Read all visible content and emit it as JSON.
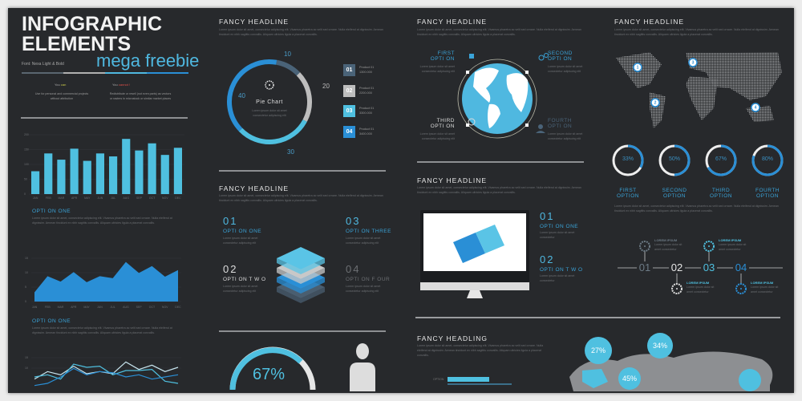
{
  "colors": {
    "background": "#27292c",
    "cyan": "#4fc0e0",
    "blue": "#2a8fd6",
    "slate": "#4a6378",
    "light_gray": "#bdbdbd",
    "text": "#e6e6e6"
  },
  "lorem_long": "Lorem ipsum dolor sit amet, consectetur adipiscing elit. Vivamus pharetra ac velit sed ornare. Nulla eleifend at dignissim. Aenean tincidunt ex nibh sagittis convallis. Aliquam ultricies ligula a placerat convallis.",
  "lorem_short": "Lorem ipsum dolor sit amet consectetur adipiscing elit",
  "intro": {
    "title_line1": "INFOGRAPHIC",
    "title_line2": "ELEMENTS",
    "subtitle": "mega freebie",
    "font_note": "Font: Nexa Light & Bold",
    "can_prefix": "You ",
    "can_word": "can",
    "can_text": "Use for personal and commercial projects without attribution",
    "cannot_prefix": "You ",
    "cannot_word": "cannot !",
    "cannot_text": "Redistribute or resell (not even parts) as vectors or rasters in microstock or similar market places"
  },
  "bar_chart": {
    "chart_data": {
      "type": "bar",
      "categories": [
        "JAN",
        "FEB",
        "MAR",
        "APR",
        "MAY",
        "JUN",
        "JUL",
        "AUG",
        "SEP",
        "OCT",
        "NOV",
        "DEC"
      ],
      "values": [
        77,
        137,
        116,
        153,
        112,
        137,
        127,
        186,
        147,
        171,
        132,
        156
      ],
      "yticks": [
        "0",
        "50",
        "100",
        "150",
        "200"
      ],
      "ylim": [
        0,
        200
      ],
      "grid": true,
      "color": "#4fc0e0"
    }
  },
  "option_one_a": {
    "label": "OPTI ON ONE"
  },
  "area_chart": {
    "chart_data": {
      "type": "area",
      "categories": [
        "JAN",
        "FEB",
        "MAR",
        "APR",
        "MAY",
        "JUN",
        "JUL",
        "AUG",
        "SEP",
        "OCT",
        "NOV",
        "DEC"
      ],
      "values": [
        3.2,
        8.8,
        6.9,
        10.2,
        6.7,
        8.8,
        8.1,
        13.7,
        9.9,
        12.3,
        8.6,
        10.9
      ],
      "yticks": [
        "0",
        "5",
        "10",
        "15"
      ],
      "ylim": [
        0,
        15
      ],
      "grid": true,
      "color": "#2a8fd6"
    }
  },
  "option_one_b": {
    "label": "OPTI ON ONE"
  },
  "line_chart": {
    "chart_data": {
      "type": "line",
      "yticks": [
        "15",
        "10"
      ],
      "ylim": [
        0,
        15
      ],
      "series": [
        {
          "values": [
            5,
            8.5,
            7,
            11,
            7.5,
            8.5,
            7.5,
            13,
            9.5,
            11.5,
            8.5,
            10.5
          ],
          "color": "#c8e6f0"
        },
        {
          "values": [
            6,
            7,
            5,
            12,
            10.5,
            11,
            7,
            9,
            9,
            9.5,
            4,
            3
          ],
          "color": "#4fc0e0"
        },
        {
          "values": [
            2,
            3,
            6,
            10,
            7,
            8.5,
            8,
            6,
            7,
            5,
            6,
            7
          ],
          "color": "#2a8fd6"
        }
      ]
    }
  },
  "pie_section": {
    "headline": "FANCY HEADLINE",
    "center_label": "Pie Chart",
    "chart_data": {
      "type": "pie",
      "values": [
        10,
        20,
        30,
        40
      ],
      "labels": [
        "10",
        "20",
        "30",
        "40"
      ],
      "colors": [
        "#4a6378",
        "#bdbdbd",
        "#4fc0e0",
        "#2a8fd6"
      ]
    },
    "legend": [
      {
        "num": "01",
        "name": "Product 01",
        "value": "1300.000",
        "color": "#4a6378"
      },
      {
        "num": "02",
        "name": "Product 01",
        "value": "2200.000",
        "color": "#bdbdbd"
      },
      {
        "num": "03",
        "name": "Product 01",
        "value": "3300.000",
        "color": "#4fc0e0"
      },
      {
        "num": "04",
        "name": "Product 01",
        "value": "3400.000",
        "color": "#2a8fd6"
      }
    ]
  },
  "layers_section": {
    "headline": "FANCY HEADLINE",
    "items": [
      {
        "num": "01",
        "label": "OPTI ON ONE"
      },
      {
        "num": "02",
        "label": "OPTI ON T W O"
      },
      {
        "num": "03",
        "label": "OPTI ON THREE"
      },
      {
        "num": "04",
        "label": "OPTI ON F OUR"
      }
    ]
  },
  "person_section": {
    "percent": "67%",
    "value": 67
  },
  "globe_section": {
    "headline": "FANCY HEADLINE",
    "options": [
      {
        "l1": "FIRST",
        "l2": "OPTI ON",
        "icon": "puzzle-icon"
      },
      {
        "l1": "SECOND",
        "l2": "OPTI ON",
        "icon": "gears-icon"
      },
      {
        "l1": "THIRD",
        "l2": "OPTI ON",
        "icon": "globe-icon"
      },
      {
        "l1": "FOURTH",
        "l2": "OPTI ON",
        "icon": "user-icon"
      }
    ]
  },
  "monitor_section": {
    "headline": "FANCY HEADLINE",
    "items": [
      {
        "num": "01",
        "label": "OPTI ON ONE",
        "text": "Lorem ipsum dolor sit amet consectetur"
      },
      {
        "num": "02",
        "label": "OPTI ON T W O",
        "text": "Lorem ipsum dolor sit amet consectetur"
      }
    ]
  },
  "headling_section": {
    "headline": "FANCY HEADLING",
    "bar_label": "OPTION",
    "bubbles": [
      "27%",
      "34%",
      "45%",
      ""
    ]
  },
  "map_section": {
    "headline": "FANCY HEADLINE",
    "pins": [
      "1",
      "3",
      "2",
      "4"
    ],
    "rings": [
      {
        "percent": "33%",
        "value": 33,
        "l1": "FIRST",
        "l2": "OPTION"
      },
      {
        "percent": "50%",
        "value": 50,
        "l1": "SECOND",
        "l2": "OPTION"
      },
      {
        "percent": "67%",
        "value": 67,
        "l1": "THIRD",
        "l2": "OPTION"
      },
      {
        "percent": "80%",
        "value": 80,
        "l1": "FOURTH",
        "l2": "OPTION"
      }
    ]
  },
  "timeline": {
    "steps": [
      "01",
      "02",
      "03",
      "04"
    ],
    "labels": [
      "LOREM IPSUM",
      "LOREM IPSUM",
      "LOREM IPSUM",
      "LOREM IPSUM"
    ],
    "text": "Lorem ipsum dolor sit amet consectetur"
  }
}
